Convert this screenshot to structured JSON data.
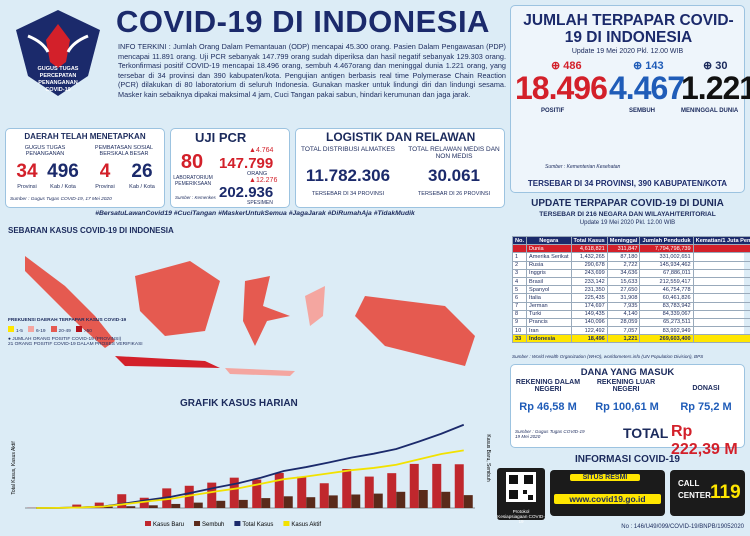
{
  "header": {
    "title": "COVID-19 DI INDONESIA",
    "logo_text": "GUGUS TUGAS PERCEPATAN PENANGANAN COVID-19",
    "info": "INFO TERKINI : Jumlah Orang Dalam Pemantauan (ODP) mencapai 45.300 orang. Pasien Dalam Pengawasan (PDP) mencapai 11.891 orang. Uji PCR sebanyak 147.799 orang sudah diperiksa dan hasil negatif sebanyak 129.303 orang. Terkonfirmasi positif COVID-19 mencapai 18.496 orang, sembuh 4.467orang dan meninggal dunia 1.221 orang, yang tersebar di 34 provinsi dan 390 kabupaten/kota. Pengujian antigen berbasis real time Polymerase Chain Reaction (PCR) dilakukan di 80 laboratorium di seluruh Indonesia. Gunakan masker untuk lindungi diri dan lindungi sesama. Masker kain sebaiknya dipakai maksimal 4 jam, Cuci Tangan pakai sabun, hindari kerumunan dan jaga jarak.",
    "hashtags": "#BersatuLawanCovid19 #CuciTangan #MaskerUntukSemua #JagaJarak #DiRumahAja #TidakMudik"
  },
  "daerah": {
    "title": "DAERAH TELAH MENETAPKAN",
    "gugus_label": "GUGUS TUGAS PENANGANAN",
    "psbb_label": "PEMBATASAN SOSIAL BERSKALA BESAR",
    "gugus_prov": "34",
    "gugus_prov_unit": "Provinsi",
    "gugus_kab": "496",
    "gugus_kab_unit": "Kab / Kota",
    "psbb_prov": "4",
    "psbb_prov_unit": "Provinsi",
    "psbb_kab": "26",
    "psbb_kab_unit": "Kab / Kota",
    "source": "Sumber : Gugus Tugas COVID-19, 17 Mei 2020"
  },
  "pcr": {
    "title": "UJI PCR",
    "labs": "80",
    "labs_label": "LABORATORIUM PEMERIKSAAN",
    "orang_delta": "4.764",
    "orang": "147.799",
    "orang_label": "ORANG",
    "spesimen_delta": "12.276",
    "spesimen": "202.936",
    "spesimen_label": "SPESIMEN",
    "source": "Sumber : Kemenkes"
  },
  "logistik": {
    "title": "LOGISTIK DAN RELAWAN",
    "almatkes_label": "TOTAL DISTRIBUSI ALMATKES",
    "almatkes": "11.782.306",
    "almatkes_note": "TERSEBAR DI 34 PROVINSI",
    "relawan_label": "TOTAL RELAWAN MEDIS DAN NON MEDIS",
    "relawan": "30.061",
    "relawan_note": "TERSEBAR DI 26 PROVINSI"
  },
  "terpapar": {
    "title": "JUMLAH TERPAPAR COVID-19 DI INDONESIA",
    "update": "Update 19 Mei 2020 Pkl. 12.00 WIB",
    "positif_delta": "486",
    "positif": "18.496",
    "positif_label": "POSITIF",
    "sembuh_delta": "143",
    "sembuh": "4.467",
    "sembuh_label": "SEMBUH",
    "meninggal_delta": "30",
    "meninggal": "1.221",
    "meninggal_label": "MENINGGAL DUNIA",
    "source": "Sumber : Kementerian Kesehatan",
    "spread": "TERSEBAR DI 34 PROVINSI, 390 KABUPATEN/KOTA"
  },
  "world": {
    "title": "UPDATE TERPAPAR COVID-19 DI DUNIA",
    "subtitle": "TERSEBAR DI 216 NEGARA DAN WILAYAH/TERITORIAL",
    "update": "Update 19 Mei 2020 Pkl. 12.00 WIB",
    "headers": [
      "No.",
      "Negara",
      "Total Kasus",
      "Meninggal",
      "Jumlah Penduduk",
      "Kematian/1 Juta Penduduk"
    ],
    "rows": [
      [
        "",
        "Dunia",
        "4,618,821",
        "311,847",
        "7,794,798,739",
        "40"
      ],
      [
        "1",
        "Amerika Serikat",
        "1,432,265",
        "87,180",
        "331,002,651",
        "263"
      ],
      [
        "2",
        "Rusia",
        "290,678",
        "2,722",
        "145,934,462",
        "19"
      ],
      [
        "3",
        "Inggris",
        "243,699",
        "34,636",
        "67,886,011",
        "510"
      ],
      [
        "4",
        "Brasil",
        "233,142",
        "15,633",
        "212,559,417",
        "74"
      ],
      [
        "5",
        "Spanyol",
        "231,350",
        "27,650",
        "46,754,778",
        "591"
      ],
      [
        "6",
        "Italia",
        "225,435",
        "31,908",
        "60,461,826",
        "528"
      ],
      [
        "7",
        "Jerman",
        "174,697",
        "7,935",
        "83,783,942",
        "95"
      ],
      [
        "8",
        "Turki",
        "149,435",
        "4,140",
        "84,339,067",
        "49"
      ],
      [
        "9",
        "Prancis",
        "140,096",
        "28,059",
        "65,273,511",
        "430"
      ],
      [
        "10",
        "Iran",
        "122,492",
        "7,057",
        "83,992,949",
        "84"
      ],
      [
        "33",
        "Indonesia",
        "18,496",
        "1,221",
        "269,603,400",
        "5"
      ]
    ],
    "source": "Sumber : World Health Organization (WHO), worldometers.info (UN Population Division), BPS"
  },
  "map": {
    "title": "SEBARAN KASUS COVID-19 DI INDONESIA",
    "legend_title": "FREKUENSI DAERAH TERPAPAR KASUS COVID-19",
    "bins": [
      "1-5",
      "6-19",
      "20-49",
      ">50"
    ],
    "bin_colors": [
      "#ffe600",
      "#f4a6a0",
      "#e55a50",
      "#b3121c"
    ],
    "bubble_note": "JUMLAH ORANG POSITIF COVID-19 (PROVINSI)",
    "verif_note": "21 ORANG POSITIF COVID-19 DALAM PROSES VERIFIKASI"
  },
  "daily_chart": {
    "title": "GRAFIK KASUS HARIAN",
    "y_label": "Total Kasus, Kasus Aktif",
    "y2_label": "Kasus Baru, Sembuh",
    "ylim": [
      0,
      20000
    ],
    "y2lim": [
      0,
      1000
    ],
    "series": [
      {
        "name": "Kasus Baru",
        "color": "#c0272d",
        "axis": "y2",
        "values": [
          2,
          8,
          38,
          60,
          153,
          114,
          218,
          247,
          282,
          337,
          316,
          390,
          347,
          275,
          433,
          349,
          387,
          490,
          490,
          486
        ]
      },
      {
        "name": "Sembuh",
        "color": "#5a2a1a",
        "axis": "y2",
        "values": [
          0,
          2,
          8,
          15,
          20,
          30,
          45,
          60,
          80,
          90,
          110,
          130,
          120,
          140,
          150,
          160,
          180,
          200,
          180,
          143
        ]
      },
      {
        "name": "Total Kasus",
        "color": "#1b2a6b",
        "values": [
          2,
          27,
          134,
          369,
          1046,
          1790,
          2491,
          3512,
          4557,
          5516,
          6760,
          8211,
          9096,
          10118,
          11192,
          12071,
          13112,
          14749,
          16496,
          18496
        ]
      },
      {
        "name": "Kasus Aktif",
        "color": "#f2e200",
        "values": [
          2,
          25,
          120,
          330,
          900,
          1500,
          2050,
          2900,
          3700,
          4400,
          5400,
          6400,
          7000,
          7700,
          8400,
          8900,
          9600,
          10800,
          12000,
          12800
        ]
      }
    ]
  },
  "dana": {
    "title": "DANA YANG MASUK",
    "dalam_label": "REKENING DALAM NEGERI",
    "dalam": "Rp 46,58 M",
    "luar_label": "REKENING LUAR NEGERI",
    "luar": "Rp 100,61 M",
    "donasi_label": "DONASI",
    "donasi": "Rp 75,2 M",
    "total_label": "TOTAL",
    "total": "Rp 222,39 M",
    "source": "Sumber : Gugus Tugas COVID-19 19 Mei 2020"
  },
  "info": {
    "title": "INFORMASI COVID-19",
    "qr_label": "Protokol Kesiapsiagaan COVID-19",
    "site_label": "SITUS RESMI",
    "site": "www.covid19.go.id",
    "call_label": "CALL CENTER",
    "call": "119"
  },
  "footer": "No : 146/U49/099/COVID-19/BNPB/19052020"
}
